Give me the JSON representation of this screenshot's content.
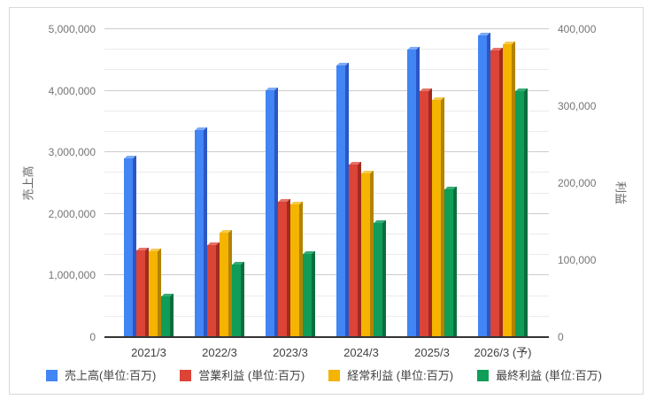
{
  "chart_data": {
    "type": "bar",
    "title": "",
    "categories": [
      "2021/3",
      "2022/3",
      "2023/3",
      "2024/3",
      "2025/3",
      "2026/3 (予)"
    ],
    "series": [
      {
        "name": "売上高(単位:百万)",
        "axis": "left",
        "color": "#4285f4",
        "side_color": "#2a56c6",
        "top_color": "#7faaf7",
        "values": [
          2900000,
          3367000,
          4005000,
          4405000,
          4670000,
          4900000
        ]
      },
      {
        "name": "営業利益 (単位:百万)",
        "axis": "right",
        "color": "#db4437",
        "side_color": "#a02b1e",
        "top_color": "#e57368",
        "values": [
          113000,
          120000,
          176000,
          224000,
          320000,
          373000
        ]
      },
      {
        "name": "経常利益 (単位:百万)",
        "axis": "right",
        "color": "#f4b400",
        "side_color": "#b28200",
        "top_color": "#f7ca4c",
        "values": [
          112000,
          136000,
          172000,
          213000,
          308000,
          381000
        ]
      },
      {
        "name": "最終利益 (単位:百万)",
        "axis": "right",
        "color": "#0f9d58",
        "side_color": "#0b6e3e",
        "top_color": "#38ab74",
        "values": [
          53000,
          94000,
          108000,
          148000,
          192000,
          320000
        ]
      }
    ],
    "left_axis": {
      "title": "売上高",
      "max": 5000000,
      "ticks": [
        "0",
        "1,000,000",
        "2,000,000",
        "3,000,000",
        "4,000,000",
        "5,000,000"
      ]
    },
    "right_axis": {
      "title": "利益",
      "max": 400000,
      "ticks": [
        "0",
        "100,000",
        "200,000",
        "300,000",
        "400,000"
      ]
    },
    "grid": {
      "major_color": "#cccccc",
      "minor_color": "#ebebeb",
      "minor_per_major": 2
    },
    "legend_position": "bottom"
  }
}
